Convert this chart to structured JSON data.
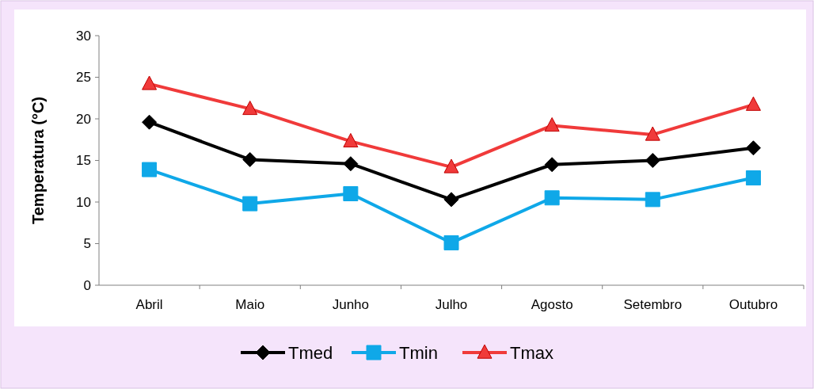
{
  "chart_data": {
    "type": "line",
    "ylabel": "Temperatura (°C)",
    "categories": [
      "Abril",
      "Maio",
      "Junho",
      "Julho",
      "Agosto",
      "Setembro",
      "Outubro"
    ],
    "series": [
      {
        "name": "Tmed",
        "color": "#000000",
        "marker": "diamond",
        "values": [
          19.6,
          15.1,
          14.6,
          10.3,
          14.5,
          15.0,
          16.5
        ]
      },
      {
        "name": "Tmin",
        "color": "#0fa8e8",
        "marker": "square",
        "values": [
          13.9,
          9.8,
          11.0,
          5.1,
          10.5,
          10.3,
          12.9
        ]
      },
      {
        "name": "Tmax",
        "color": "#f03a3a",
        "marker": "triangle",
        "values": [
          24.2,
          21.2,
          17.3,
          14.2,
          19.2,
          18.1,
          21.7
        ]
      }
    ],
    "ylim": [
      0,
      30
    ],
    "yticks": [
      0,
      5,
      10,
      15,
      20,
      25,
      30
    ],
    "grid": false,
    "legend": "bottom"
  }
}
